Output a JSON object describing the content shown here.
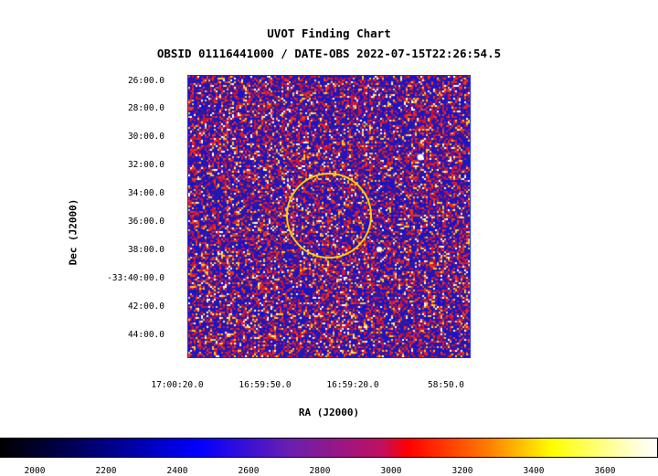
{
  "chart": {
    "title": "UVOT Finding Chart",
    "subtitle": "OBSID 01116441000 / DATE-OBS 2022-07-15T22:26:54.5",
    "xlabel": "RA (J2000)",
    "ylabel": "Dec (J2000)",
    "y_ticks": [
      "26:00.0",
      "28:00.0",
      "30:00.0",
      "32:00.0",
      "34:00.0",
      "36:00.0",
      "38:00.0",
      "-33:40:00.0",
      "42:00.0",
      "44:00.0"
    ],
    "x_ticks": [
      "17:00:20.0",
      "16:59:50.0",
      "16:59:20.0",
      "58:50.0"
    ],
    "colorbar_ticks": [
      "2000",
      "2200",
      "2400",
      "2600",
      "2800",
      "3000",
      "3200",
      "3400",
      "3600"
    ]
  },
  "chart_data": {
    "type": "heatmap",
    "title": "UVOT Finding Chart",
    "subtitle": "OBSID 01116441000 / DATE-OBS 2022-07-15T22:26:54.5",
    "xlabel": "RA (J2000)",
    "ylabel": "Dec (J2000)",
    "x_ticks": [
      "17:00:20.0",
      "16:59:50.0",
      "16:59:20.0",
      "58:50.0"
    ],
    "y_ticks": [
      "26:00.0",
      "28:00.0",
      "30:00.0",
      "32:00.0",
      "34:00.0",
      "36:00.0",
      "38:00.0",
      "-33:40:00.0",
      "42:00.0",
      "44:00.0"
    ],
    "colorbar": {
      "ticks": [
        2000,
        2200,
        2400,
        2600,
        2800,
        3000,
        3200,
        3400,
        3600
      ],
      "colormap": [
        "#000000",
        "#0000ff",
        "#ff0000",
        "#ffff00",
        "#ffffff"
      ]
    },
    "circle_color": "#ffcc00",
    "frame_color": "#1a2cff",
    "grid": false
  }
}
